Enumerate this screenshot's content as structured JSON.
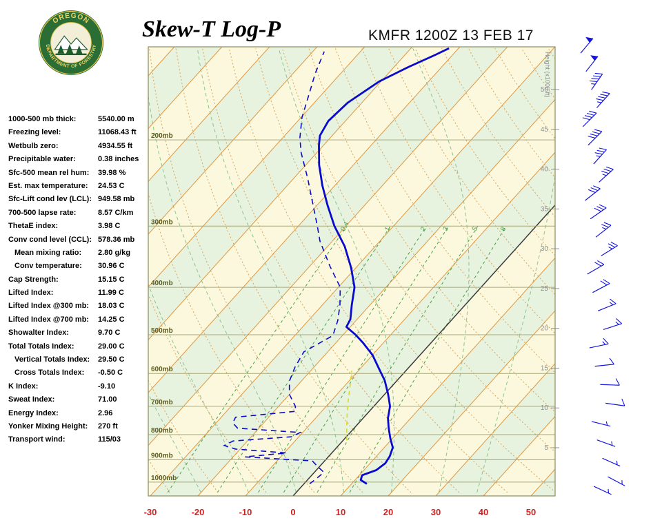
{
  "header": {
    "title": "Skew-T Log-P",
    "station": "KMFR 1200Z 13 FEB 17",
    "logo": {
      "ring_text_top": "OREGON",
      "ring_text_bottom": "DEPARTMENT OF FORESTRY"
    }
  },
  "stats": [
    {
      "label": "1000-500 mb thick:",
      "value": "5540.00 m",
      "indent": false
    },
    {
      "label": "Freezing level:",
      "value": "11068.43 ft",
      "indent": false
    },
    {
      "label": "Wetbulb zero:",
      "value": "4934.55 ft",
      "indent": false
    },
    {
      "label": "Precipitable water:",
      "value": "0.38 inches",
      "indent": false
    },
    {
      "label": "Sfc-500 mean rel hum:",
      "value": "39.98 %",
      "indent": false
    },
    {
      "label": "Est. max temperature:",
      "value": "24.53 C",
      "indent": false
    },
    {
      "label": "Sfc-Lift cond lev (LCL):",
      "value": "949.58 mb",
      "indent": false
    },
    {
      "label": "700-500 lapse rate:",
      "value": "8.57 C/km",
      "indent": false
    },
    {
      "label": "ThetaE index:",
      "value": "3.98 C",
      "indent": false
    },
    {
      "label": "Conv cond level (CCL):",
      "value": "578.36 mb",
      "indent": false
    },
    {
      "label": "Mean mixing ratio:",
      "value": "2.80 g/kg",
      "indent": true
    },
    {
      "label": "Conv temperature:",
      "value": "30.96 C",
      "indent": true
    },
    {
      "label": "Cap Strength:",
      "value": "15.15 C",
      "indent": false
    },
    {
      "label": "Lifted Index:",
      "value": "11.99 C",
      "indent": false
    },
    {
      "label": "Lifted Index @300 mb:",
      "value": "18.03 C",
      "indent": false
    },
    {
      "label": "Lifted Index @700 mb:",
      "value": "14.25 C",
      "indent": false
    },
    {
      "label": "Showalter Index:",
      "value": "9.70 C",
      "indent": false
    },
    {
      "label": "Total Totals Index:",
      "value": "29.00 C",
      "indent": false
    },
    {
      "label": "Vertical Totals Index:",
      "value": "29.50 C",
      "indent": true
    },
    {
      "label": "Cross Totals Index:",
      "value": "-0.50 C",
      "indent": true
    },
    {
      "label": "K Index:",
      "value": "-9.10",
      "indent": false
    },
    {
      "label": "Sweat Index:",
      "value": "71.00",
      "indent": false
    },
    {
      "label": "Energy Index:",
      "value": "2.96",
      "indent": false
    },
    {
      "label": "Yonker Mixing Height:",
      "value": "270 ft",
      "indent": false
    },
    {
      "label": "Transport wind:",
      "value": "115/03",
      "indent": false
    }
  ],
  "chart_data": {
    "type": "skewt-log-p",
    "title": "Skew-T Log-P",
    "station": "KMFR 1200Z 13 FEB 17",
    "x_axis": {
      "ticks_c": [
        -30,
        -20,
        -10,
        0,
        10,
        20,
        30,
        40,
        50
      ]
    },
    "pressure_lines_mb": [
      200,
      300,
      400,
      500,
      600,
      700,
      800,
      900,
      1000
    ],
    "pressure_label_suffix": "mb",
    "height_scale": {
      "title": "Height (x1000 ft)",
      "values": [
        50,
        45,
        40,
        35,
        30,
        25,
        20,
        15,
        10,
        5
      ]
    },
    "isotherms": {
      "from": -120,
      "to": 60,
      "step": 10
    },
    "dry_adiabats": {
      "from": -40,
      "to": 170,
      "step": 10
    },
    "moist_adiabats": [
      -20,
      -10,
      0,
      10,
      20,
      30,
      38
    ],
    "mixing_ratio_lines_gkg": [
      0.4,
      1,
      2,
      3,
      5,
      8
    ],
    "temperature_profile": [
      {
        "p": 1008,
        "t": 13.2
      },
      {
        "p": 990,
        "t": 11.2
      },
      {
        "p": 968,
        "t": 10.6
      },
      {
        "p": 945,
        "t": 12.6
      },
      {
        "p": 915,
        "t": 13.2
      },
      {
        "p": 885,
        "t": 12.8
      },
      {
        "p": 850,
        "t": 11.8
      },
      {
        "p": 815,
        "t": 9.6
      },
      {
        "p": 775,
        "t": 7.2
      },
      {
        "p": 740,
        "t": 5.2
      },
      {
        "p": 700,
        "t": 3.4
      },
      {
        "p": 660,
        "t": 0.6
      },
      {
        "p": 620,
        "t": -2.6
      },
      {
        "p": 585,
        "t": -6.2
      },
      {
        "p": 550,
        "t": -10.0
      },
      {
        "p": 520,
        "t": -14.2
      },
      {
        "p": 500,
        "t": -17.4
      },
      {
        "p": 482,
        "t": -20.8
      },
      {
        "p": 465,
        "t": -21.4
      },
      {
        "p": 435,
        "t": -23.8
      },
      {
        "p": 400,
        "t": -26.6
      },
      {
        "p": 365,
        "t": -31.0
      },
      {
        "p": 330,
        "t": -36.4
      },
      {
        "p": 300,
        "t": -42.4
      },
      {
        "p": 272,
        "t": -47.8
      },
      {
        "p": 248,
        "t": -52.6
      },
      {
        "p": 225,
        "t": -57.2
      },
      {
        "p": 205,
        "t": -61.0
      },
      {
        "p": 196,
        "t": -62.6
      },
      {
        "p": 183,
        "t": -63.6
      },
      {
        "p": 168,
        "t": -63.0
      },
      {
        "p": 152,
        "t": -60.4
      },
      {
        "p": 142,
        "t": -57.0
      },
      {
        "p": 134,
        "t": -53.6
      },
      {
        "p": 130,
        "t": -52.0
      }
    ],
    "dewpoint_profile": [
      {
        "p": 1008,
        "t": 1.2
      },
      {
        "p": 985,
        "t": 1.6
      },
      {
        "p": 955,
        "t": 2.0
      },
      {
        "p": 925,
        "t": -0.8
      },
      {
        "p": 905,
        "t": -2.6
      },
      {
        "p": 888,
        "t": -17.5
      },
      {
        "p": 872,
        "t": -9.5
      },
      {
        "p": 856,
        "t": -21.0
      },
      {
        "p": 842,
        "t": -24.0
      },
      {
        "p": 824,
        "t": -23.0
      },
      {
        "p": 808,
        "t": -11.5
      },
      {
        "p": 792,
        "t": -10.5
      },
      {
        "p": 776,
        "t": -24.5
      },
      {
        "p": 757,
        "t": -26.5
      },
      {
        "p": 737,
        "t": -27.0
      },
      {
        "p": 717,
        "t": -15.5
      },
      {
        "p": 700,
        "t": -16.5
      },
      {
        "p": 662,
        "t": -20.0
      },
      {
        "p": 622,
        "t": -22.5
      },
      {
        "p": 582,
        "t": -24.0
      },
      {
        "p": 542,
        "t": -25.0
      },
      {
        "p": 502,
        "t": -22.0
      },
      {
        "p": 468,
        "t": -23.8
      },
      {
        "p": 436,
        "t": -26.2
      },
      {
        "p": 400,
        "t": -29.6
      },
      {
        "p": 362,
        "t": -35.8
      },
      {
        "p": 322,
        "t": -42.6
      },
      {
        "p": 300,
        "t": -46.0
      },
      {
        "p": 270,
        "t": -51.2
      },
      {
        "p": 240,
        "t": -57.0
      },
      {
        "p": 212,
        "t": -63.4
      },
      {
        "p": 198,
        "t": -66.4
      },
      {
        "p": 180,
        "t": -69.8
      },
      {
        "p": 162,
        "t": -72.6
      },
      {
        "p": 146,
        "t": -75.4
      },
      {
        "p": 132,
        "t": -77.6
      }
    ],
    "parcel_segment": [
      {
        "p": 822,
        "t": 0.8
      },
      {
        "p": 775,
        "t": -1.6
      },
      {
        "p": 725,
        "t": -4.2
      },
      {
        "p": 675,
        "t": -6.8
      },
      {
        "p": 630,
        "t": -9.2
      },
      {
        "p": 592,
        "t": -11.4
      }
    ],
    "winds": [
      {
        "p": 133,
        "dir": 40,
        "spd": 50
      },
      {
        "p": 145,
        "dir": 38,
        "spd": 50
      },
      {
        "p": 158,
        "dir": 35,
        "spd": 45
      },
      {
        "p": 172,
        "dir": 42,
        "spd": 45
      },
      {
        "p": 188,
        "dir": 45,
        "spd": 40
      },
      {
        "p": 205,
        "dir": 45,
        "spd": 40
      },
      {
        "p": 224,
        "dir": 42,
        "spd": 35
      },
      {
        "p": 244,
        "dir": 48,
        "spd": 35
      },
      {
        "p": 266,
        "dir": 52,
        "spd": 30
      },
      {
        "p": 290,
        "dir": 55,
        "spd": 30
      },
      {
        "p": 316,
        "dir": 52,
        "spd": 25
      },
      {
        "p": 345,
        "dir": 58,
        "spd": 25
      },
      {
        "p": 376,
        "dir": 60,
        "spd": 20
      },
      {
        "p": 410,
        "dir": 62,
        "spd": 20
      },
      {
        "p": 447,
        "dir": 68,
        "spd": 15
      },
      {
        "p": 488,
        "dir": 72,
        "spd": 15
      },
      {
        "p": 532,
        "dir": 78,
        "spd": 15
      },
      {
        "p": 580,
        "dir": 84,
        "spd": 10
      },
      {
        "p": 632,
        "dir": 92,
        "spd": 10
      },
      {
        "p": 690,
        "dir": 98,
        "spd": 8
      },
      {
        "p": 752,
        "dir": 104,
        "spd": 5
      },
      {
        "p": 820,
        "dir": 110,
        "spd": 5
      },
      {
        "p": 894,
        "dir": 114,
        "spd": 5
      },
      {
        "p": 975,
        "dir": 118,
        "spd": 3
      },
      {
        "p": 1020,
        "dir": 115,
        "spd": 3
      }
    ],
    "colors": {
      "band_green": "#e7f2df",
      "band_cream": "#fbf8dd",
      "isotherm": "#e0973f",
      "zero_isotherm": "#3a3a3a",
      "dry_adiabat": "#d8a35a",
      "moist_adiabat": "#8cc48c",
      "mixing_ratio": "#46a046",
      "pressure_line": "#a8a878",
      "pressure_label": "#5c5c1e",
      "height_label": "#8f8f8f",
      "frame": "#8a8a5a",
      "temp_axis_label": "#cc2222",
      "temperature": "#0a0acd",
      "dewpoint": "#0a0acd",
      "parcel": "#ddd82a",
      "wind_barb": "#1414dd"
    }
  }
}
